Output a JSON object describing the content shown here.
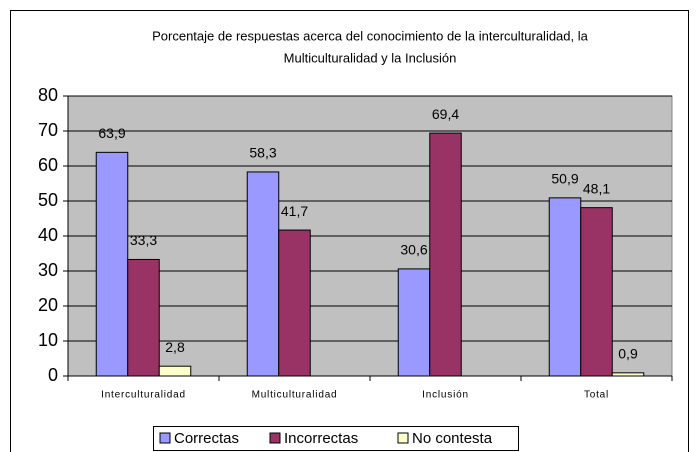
{
  "chart_data": {
    "type": "bar",
    "title": [
      "Porcentaje de respuestas acerca del conocimiento de la interculturalidad, la",
      "Multiculturalidad y la Inclusión"
    ],
    "categories": [
      "Interculturalidad",
      "Multiculturalidad",
      "Inclusión",
      "Total"
    ],
    "series": [
      {
        "name": "Correctas",
        "color": "#9999ff",
        "values": [
          63.9,
          58.3,
          30.6,
          50.9
        ],
        "value_labels": [
          "63,9",
          "58,3",
          "30,6",
          "50,9"
        ]
      },
      {
        "name": "Incorrectas",
        "color": "#993366",
        "values": [
          33.3,
          41.7,
          69.4,
          48.1
        ],
        "value_labels": [
          "33,3",
          "41,7",
          "69,4",
          "48,1"
        ]
      },
      {
        "name": "No contesta",
        "color": "#ffffcc",
        "values": [
          2.8,
          null,
          null,
          0.9
        ],
        "value_labels": [
          "2,8",
          null,
          null,
          "0,9"
        ]
      }
    ],
    "ylim": [
      0,
      80
    ],
    "yticks": [
      0,
      10,
      20,
      30,
      40,
      50,
      60,
      70,
      80
    ],
    "grid": true,
    "plot_background": "#c0c0c0",
    "legend": "bottom"
  }
}
